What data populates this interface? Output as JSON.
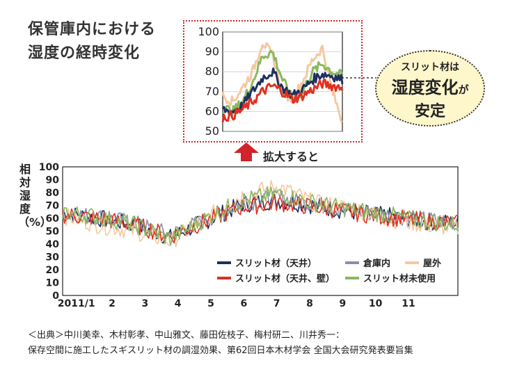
{
  "title_lines": [
    "保管庫内における",
    "湿度の経時変化"
  ],
  "callout": {
    "line1": "スリット材は",
    "line2": "湿度変化",
    "line2_suffix": "が",
    "line3": "安定"
  },
  "zoom_label": "拡大すると",
  "ylabel": "相対湿度（%）",
  "source_lines": [
    "＜出典＞中川美幸、木村彰孝、中山雅文、藤田佐枝子、梅村研二、川井秀一：",
    "保存空間に施工したスギスリット材の調湿効果、第62回日本木材学会 全国大会研究発表要旨集"
  ],
  "colors": {
    "slit_ceiling": "#1f2f5e",
    "slit_ceiling_wall": "#e03020",
    "warehouse": "#8a8fa8",
    "outdoor": "#f5c8a0",
    "slit_unused": "#8ab860",
    "highlight": "#d2232a"
  },
  "chart_data": [
    {
      "type": "line",
      "ylim": [
        0,
        100
      ],
      "yticks": [
        "0",
        "10",
        "20",
        "30",
        "40",
        "50",
        "60",
        "70",
        "80",
        "90",
        "100"
      ],
      "x_ticks": [
        "2011/1",
        "2",
        "3",
        "4",
        "5",
        "6",
        "7",
        "8",
        "9",
        "10",
        "11"
      ],
      "legend_position": "bottom-right",
      "series": [
        {
          "name": "スリット材（天井）",
          "color_key": "slit_ceiling",
          "values": [
            64,
            60,
            55,
            45,
            58,
            71,
            74,
            70,
            65,
            62,
            58,
            56
          ]
        },
        {
          "name": "倉庫内",
          "color_key": "warehouse",
          "values": [
            64,
            61,
            56,
            47,
            59,
            72,
            76,
            71,
            66,
            63,
            59,
            57
          ]
        },
        {
          "name": "屋外",
          "color_key": "outdoor",
          "values": [
            62,
            55,
            50,
            42,
            60,
            78,
            85,
            72,
            68,
            60,
            55,
            52
          ]
        },
        {
          "name": "スリット材（天井、壁）",
          "color_key": "slit_ceiling_wall",
          "values": [
            63,
            60,
            55,
            46,
            58,
            69,
            72,
            69,
            65,
            61,
            58,
            56
          ]
        },
        {
          "name": "スリット材未使用",
          "color_key": "slit_unused",
          "values": [
            65,
            61,
            55,
            44,
            60,
            74,
            79,
            72,
            67,
            63,
            58,
            55
          ]
        }
      ]
    },
    {
      "type": "line",
      "ylim": [
        50,
        100
      ],
      "yticks": [
        "50",
        "60",
        "70",
        "80",
        "90",
        "100"
      ],
      "series": [
        {
          "name": "屋外",
          "color_key": "outdoor",
          "values": [
            68,
            65,
            72,
            80,
            95,
            88,
            70,
            66,
            75,
            86,
            92,
            70,
            55
          ]
        },
        {
          "name": "スリット材未使用",
          "color_key": "slit_unused",
          "values": [
            62,
            60,
            65,
            75,
            88,
            90,
            76,
            66,
            70,
            80,
            84,
            80,
            78
          ]
        },
        {
          "name": "スリット材（天井）",
          "color_key": "slit_ceiling",
          "values": [
            61,
            60,
            63,
            70,
            77,
            80,
            72,
            68,
            71,
            76,
            79,
            78,
            76
          ]
        },
        {
          "name": "スリット材（天井、壁）",
          "color_key": "slit_ceiling_wall",
          "values": [
            57,
            58,
            61,
            65,
            70,
            73,
            70,
            66,
            68,
            71,
            74,
            73,
            72
          ]
        }
      ]
    }
  ]
}
